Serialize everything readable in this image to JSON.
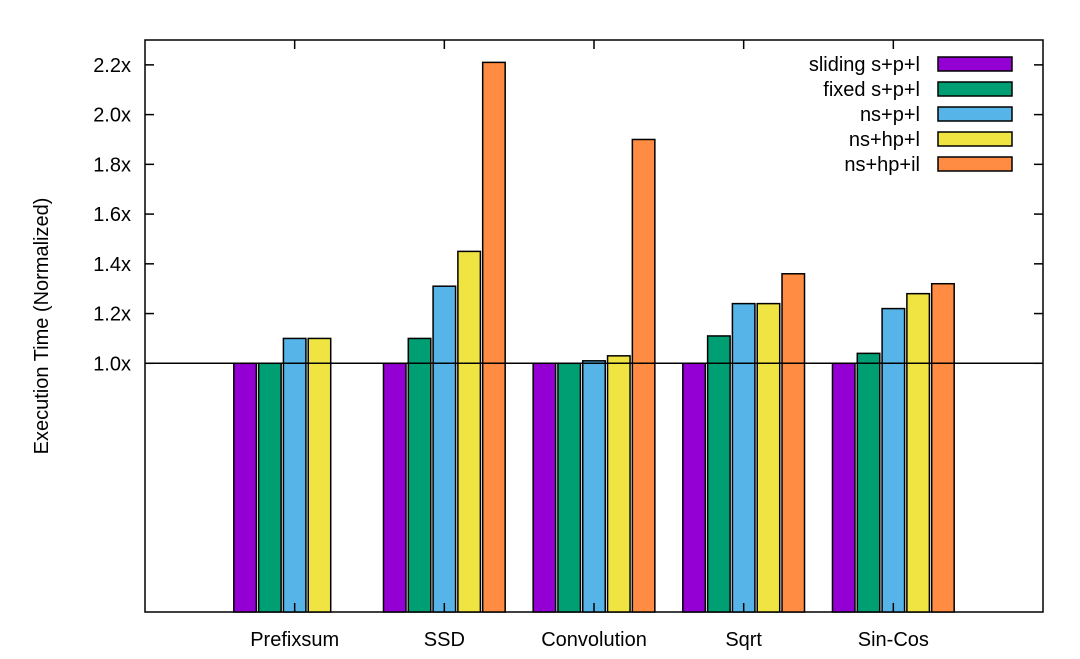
{
  "chart_data": {
    "type": "bar",
    "title": "",
    "xlabel": "",
    "ylabel": "Execution Time (Normalized)",
    "ylim": [
      0.0,
      2.3
    ],
    "yticks": [
      {
        "value": 1.0,
        "label": "1.0x"
      },
      {
        "value": 1.2,
        "label": "1.2x"
      },
      {
        "value": 1.4,
        "label": "1.4x"
      },
      {
        "value": 1.6,
        "label": "1.6x"
      },
      {
        "value": 1.8,
        "label": "1.8x"
      },
      {
        "value": 2.0,
        "label": "2.0x"
      },
      {
        "value": 2.2,
        "label": "2.2x"
      }
    ],
    "reference_line": 1.0,
    "grid": false,
    "legend_position": "top-right",
    "categories": [
      "Prefixsum",
      "SSD",
      "Convolution",
      "Sqrt",
      "Sin-Cos"
    ],
    "series": [
      {
        "name": "sliding s+p+l",
        "color": "#9400d3",
        "values": [
          1.0,
          1.0,
          1.0,
          1.0,
          1.0
        ]
      },
      {
        "name": "fixed s+p+l",
        "color": "#009e73",
        "values": [
          1.0,
          1.1,
          1.0,
          1.11,
          1.04
        ]
      },
      {
        "name": "ns+p+l",
        "color": "#56b4e9",
        "values": [
          1.1,
          1.31,
          1.01,
          1.24,
          1.22
        ]
      },
      {
        "name": "ns+hp+l",
        "color": "#f0e442",
        "values": [
          1.1,
          1.45,
          1.03,
          1.24,
          1.28
        ]
      },
      {
        "name": "ns+hp+il",
        "color": "#ff8c42",
        "values": [
          null,
          2.21,
          1.9,
          1.36,
          1.32
        ]
      }
    ]
  }
}
